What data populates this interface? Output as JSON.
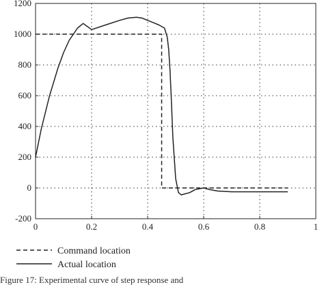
{
  "chart_data": {
    "type": "line",
    "title": "",
    "xlabel": "",
    "ylabel": "",
    "xlim": [
      0,
      1
    ],
    "ylim": [
      -200,
      1200
    ],
    "xticks": [
      0,
      0.2,
      0.4,
      0.6,
      0.8,
      1
    ],
    "xtick_labels": [
      "0",
      "0.2",
      "0.4",
      "0.6",
      "0.8",
      "1"
    ],
    "yticks": [
      -200,
      0,
      200,
      400,
      600,
      800,
      1000,
      1200
    ],
    "ytick_labels": [
      "-200",
      "0",
      "200",
      "400",
      "600",
      "800",
      "1000",
      "1200"
    ],
    "grid": true,
    "legend_position": "bottom-left, below plot",
    "series": [
      {
        "name": "Command location",
        "style": "dashed",
        "color": "#222222",
        "x": [
          0,
          0.45,
          0.45,
          0.9
        ],
        "y": [
          1000,
          1000,
          0,
          0
        ]
      },
      {
        "name": "Actual location",
        "style": "solid",
        "color": "#222222",
        "x": [
          0,
          0.02,
          0.05,
          0.08,
          0.1,
          0.12,
          0.15,
          0.17,
          0.2,
          0.25,
          0.3,
          0.33,
          0.36,
          0.38,
          0.4,
          0.42,
          0.44,
          0.46,
          0.47,
          0.475,
          0.48,
          0.485,
          0.49,
          0.5,
          0.51,
          0.52,
          0.53,
          0.55,
          0.57,
          0.6,
          0.62,
          0.65,
          0.7,
          0.75,
          0.8,
          0.85,
          0.9
        ],
        "y": [
          200,
          380,
          600,
          780,
          880,
          960,
          1040,
          1070,
          1030,
          1060,
          1090,
          1105,
          1110,
          1105,
          1090,
          1075,
          1060,
          1040,
          980,
          900,
          760,
          560,
          330,
          60,
          -30,
          -45,
          -40,
          -30,
          -10,
          0,
          -10,
          -20,
          -25,
          -25,
          -25,
          -25,
          -25
        ]
      }
    ]
  },
  "caption": "Figure 17: Experimental curve of step response and"
}
